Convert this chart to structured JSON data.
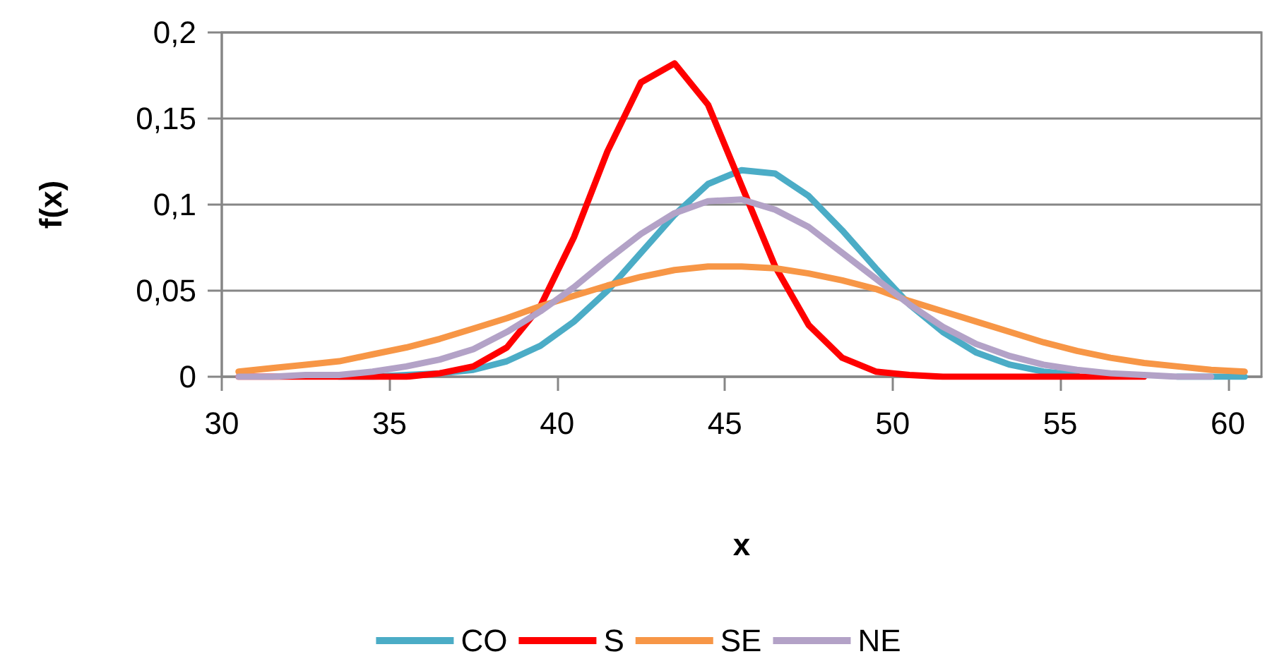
{
  "chart_data": {
    "type": "line",
    "xlabel": "x",
    "ylabel": "f(x)",
    "x": [
      30.5,
      31.5,
      32.5,
      33.5,
      34.5,
      35.5,
      36.5,
      37.5,
      38.5,
      39.5,
      40.5,
      41.5,
      42.5,
      43.5,
      44.5,
      45.5,
      46.5,
      47.5,
      48.5,
      49.5,
      50.5,
      51.5,
      52.5,
      53.5,
      54.5,
      55.5,
      56.5,
      57.5,
      58.5,
      59.5,
      60.5
    ],
    "series": [
      {
        "name": "CO",
        "color": "#4bacc6",
        "values": [
          null,
          null,
          null,
          0,
          0,
          0.001,
          0.002,
          0.004,
          0.009,
          0.018,
          0.032,
          0.05,
          0.072,
          0.094,
          0.112,
          0.12,
          0.118,
          0.105,
          0.085,
          0.063,
          0.042,
          0.026,
          0.014,
          0.007,
          0.003,
          0.001,
          null,
          null,
          0,
          0,
          0
        ]
      },
      {
        "name": "S",
        "color": "#ff0000",
        "values": [
          0,
          0,
          0,
          0,
          0,
          0,
          0.002,
          0.006,
          0.017,
          0.041,
          0.081,
          0.131,
          0.171,
          0.182,
          0.158,
          0.111,
          0.064,
          0.03,
          0.011,
          0.003,
          0.001,
          0,
          0,
          0,
          0,
          0,
          0,
          0,
          null,
          null,
          null
        ]
      },
      {
        "name": "SE",
        "color": "#f79646",
        "values": [
          0.003,
          0.005,
          0.007,
          0.009,
          0.013,
          0.017,
          0.022,
          0.028,
          0.034,
          0.041,
          0.047,
          0.053,
          0.058,
          0.062,
          0.064,
          0.064,
          0.063,
          0.06,
          0.056,
          0.051,
          0.044,
          0.038,
          0.032,
          0.026,
          0.02,
          0.015,
          0.011,
          0.008,
          0.006,
          0.004,
          0.003
        ]
      },
      {
        "name": "NE",
        "color": "#b3a2c7",
        "values": [
          0,
          0,
          0.001,
          0.001,
          0.003,
          0.006,
          0.01,
          0.016,
          0.026,
          0.038,
          0.052,
          0.068,
          0.083,
          0.095,
          0.102,
          0.103,
          0.097,
          0.087,
          0.072,
          0.057,
          0.042,
          0.029,
          0.019,
          0.012,
          0.007,
          0.004,
          0.002,
          0.001,
          0,
          0,
          null
        ]
      }
    ],
    "xlim": [
      30,
      61
    ],
    "xticks": [
      30,
      35,
      40,
      45,
      50,
      55,
      60
    ],
    "ylim": [
      0,
      0.2
    ],
    "yticks": [
      {
        "value": 0,
        "label": "0"
      },
      {
        "value": 0.05,
        "label": "0,05"
      },
      {
        "value": 0.1,
        "label": "0,1"
      },
      {
        "value": 0.15,
        "label": "0,15"
      },
      {
        "value": 0.2,
        "label": "0,2"
      }
    ],
    "grid": "y",
    "legend": "bottom",
    "marker": "none",
    "line_style": "solid"
  }
}
